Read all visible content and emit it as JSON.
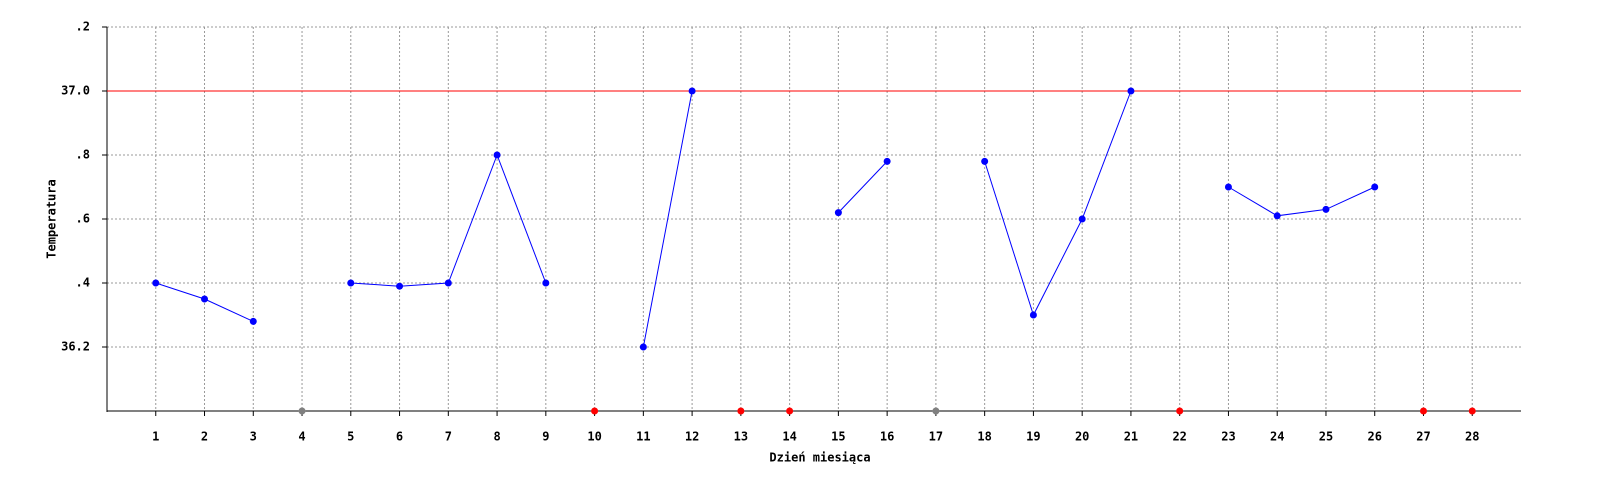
{
  "chart_data": {
    "type": "line",
    "x_label": "Dzień miesiąca",
    "y_label": "Temperatura",
    "x": [
      1,
      2,
      3,
      4,
      5,
      6,
      7,
      8,
      9,
      10,
      11,
      12,
      13,
      14,
      15,
      16,
      17,
      18,
      19,
      20,
      21,
      22,
      23,
      24,
      25,
      26,
      27,
      28
    ],
    "values": [
      36.4,
      36.35,
      36.28,
      null,
      36.4,
      36.39,
      36.4,
      36.8,
      36.4,
      null,
      36.2,
      37.0,
      null,
      null,
      36.62,
      36.78,
      null,
      36.78,
      36.3,
      36.6,
      37.0,
      null,
      36.7,
      36.61,
      36.63,
      36.7,
      null,
      null
    ],
    "color": "#0000ff",
    "gap_markers": [
      {
        "x": 4,
        "color": "#808080"
      },
      {
        "x": 10,
        "color": "#ff0000"
      },
      {
        "x": 13,
        "color": "#ff0000"
      },
      {
        "x": 14,
        "color": "#ff0000"
      },
      {
        "x": 17,
        "color": "#808080"
      },
      {
        "x": 22,
        "color": "#ff0000"
      },
      {
        "x": 27,
        "color": "#ff0000"
      },
      {
        "x": 28,
        "color": "#ff0000"
      }
    ],
    "reference_line": {
      "value": 37.0,
      "color": "#ff0000"
    },
    "xlim": [
      0,
      29
    ],
    "xticks": [
      1,
      2,
      3,
      4,
      5,
      6,
      7,
      8,
      9,
      10,
      11,
      12,
      13,
      14,
      15,
      16,
      17,
      18,
      19,
      20,
      21,
      22,
      23,
      24,
      25,
      26,
      27,
      28
    ],
    "ylim": [
      36.0,
      37.2
    ],
    "yticks": [
      {
        "value": 37.2,
        "label": ".2"
      },
      {
        "value": 37.0,
        "label": "37.0"
      },
      {
        "value": 36.8,
        "label": ".8"
      },
      {
        "value": 36.6,
        "label": ".6"
      },
      {
        "value": 36.4,
        "label": ".4"
      },
      36.2
    ],
    "grid": true
  }
}
